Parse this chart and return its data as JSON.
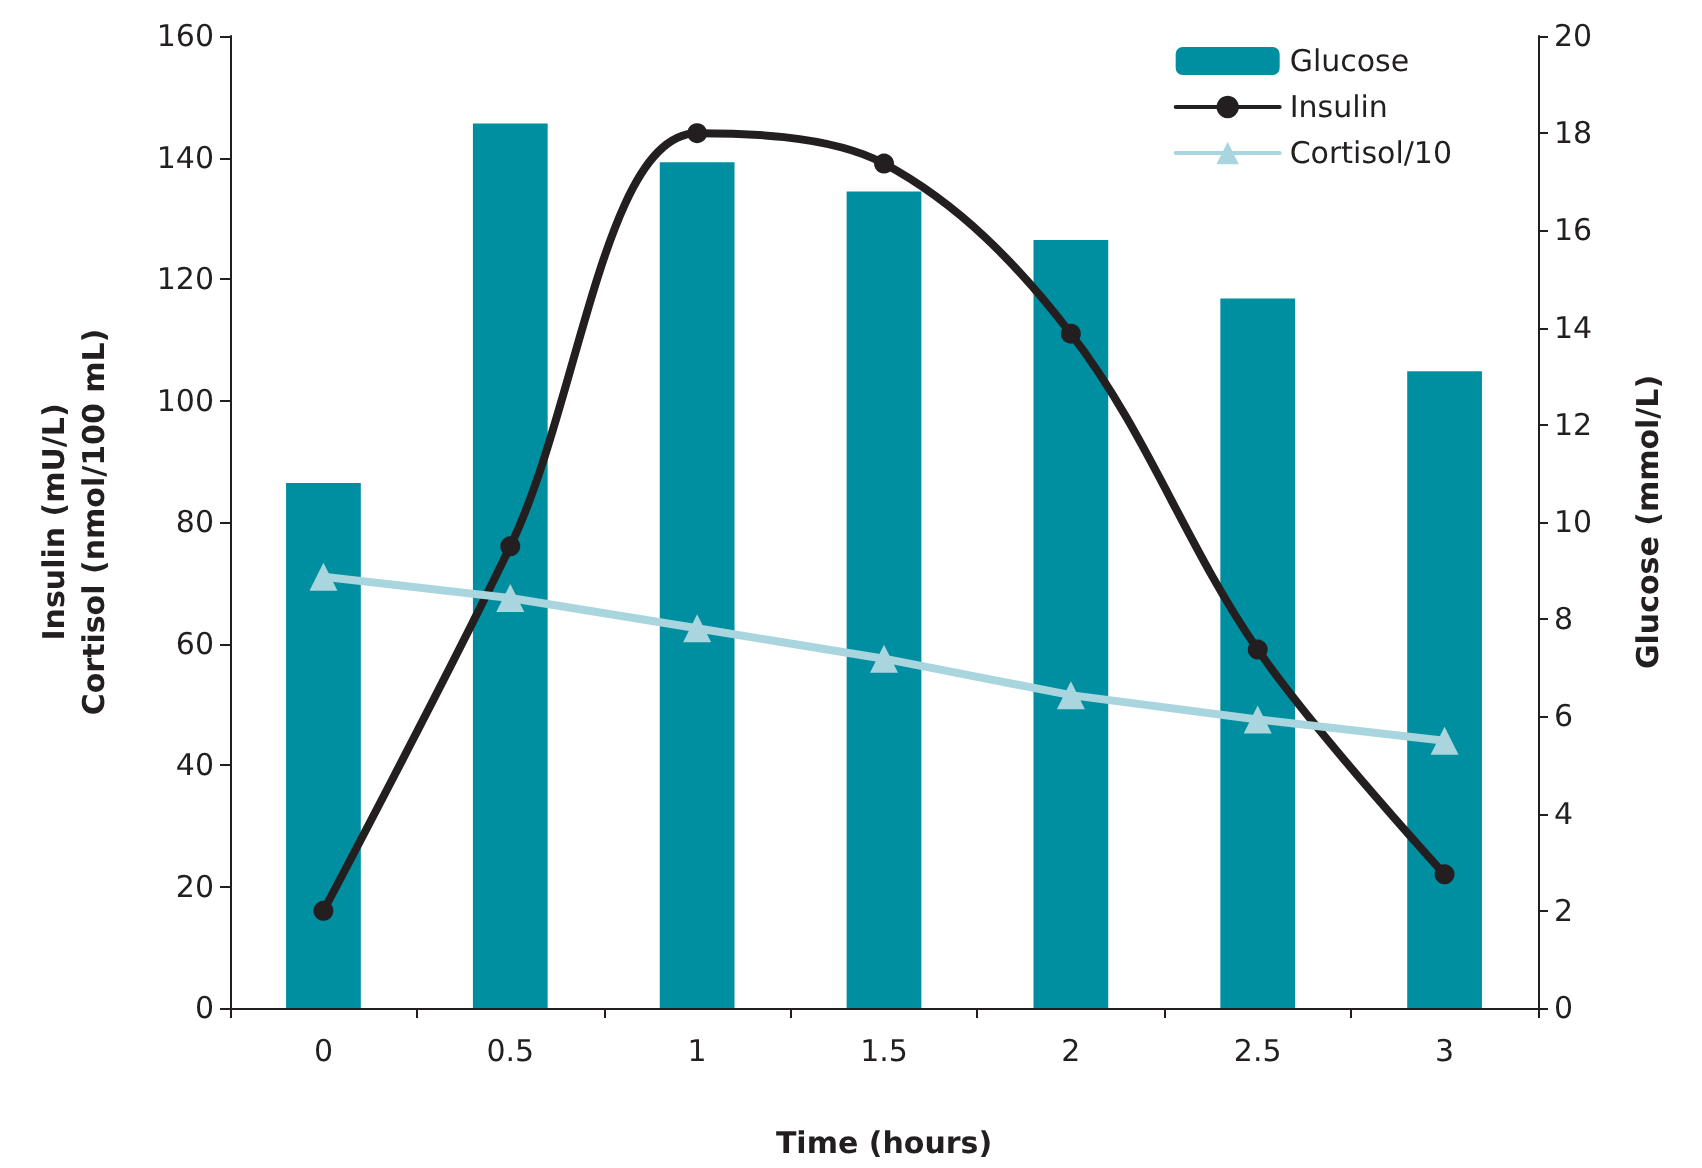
{
  "chart_data": {
    "type": "bar",
    "xlabel": "Time (hours)",
    "ylabel": "Insulin (mU/L)\nCortisol (nmol/100 mL)",
    "y2label": "Glucose (mmol/L)",
    "categories": [
      "0",
      "0.5",
      "1",
      "1.5",
      "2",
      "2.5",
      "3"
    ],
    "series": [
      {
        "name": "Glucose",
        "axis": "y2",
        "color": "#008fa0",
        "values": [
          10.8,
          18.2,
          17.4,
          16.8,
          15.8,
          14.6,
          13.1
        ]
      },
      {
        "name": "Insulin",
        "type": "line",
        "marker": "circle",
        "color": "#231f20",
        "values": [
          16,
          76,
          144,
          139,
          111,
          59,
          22
        ]
      },
      {
        "name": "Cortisol/10",
        "type": "line",
        "marker": "triangle",
        "color": "#a8d5de",
        "values": [
          71,
          67.5,
          62.5,
          57.5,
          51.5,
          47.5,
          44
        ]
      }
    ],
    "ylim": [
      0,
      160
    ],
    "yticks": [
      0,
      20,
      40,
      60,
      80,
      100,
      120,
      140,
      160
    ],
    "y2lim": [
      0,
      20
    ],
    "y2ticks": [
      0,
      2,
      4,
      6,
      8,
      10,
      12,
      14,
      16,
      18,
      20
    ],
    "grid": false,
    "legend": "top right"
  }
}
